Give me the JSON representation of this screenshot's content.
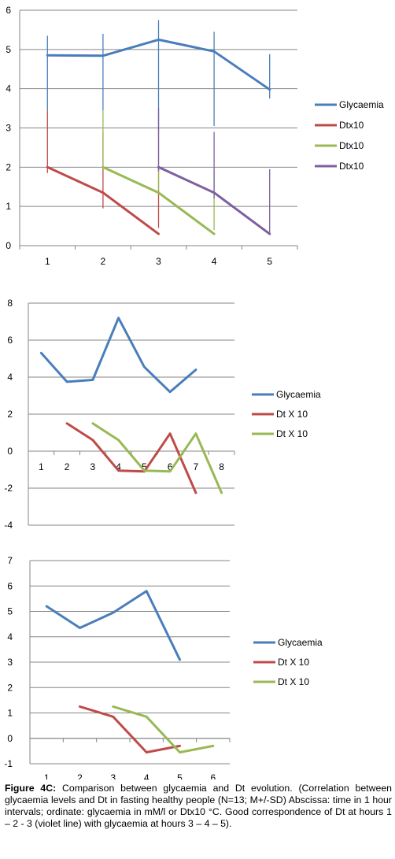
{
  "chart_data": [
    {
      "type": "line",
      "categories": [
        "1",
        "2",
        "3",
        "4",
        "5"
      ],
      "ylim": [
        0,
        6
      ],
      "yticks": [
        0,
        1,
        2,
        3,
        4,
        5,
        6
      ],
      "grid": true,
      "legend": "right",
      "series": [
        {
          "name": "Glycaemia",
          "color": "#4a7ebb",
          "points": [
            [
              1,
              4.85
            ],
            [
              2,
              4.84
            ],
            [
              3,
              5.25
            ],
            [
              4,
              4.95
            ],
            [
              5,
              3.98
            ]
          ],
          "errors": [
            [
              3.45,
              5.35
            ],
            [
              3.45,
              5.4
            ],
            [
              2.9,
              5.75
            ],
            [
              3.05,
              5.45
            ],
            [
              3.75,
              4.88
            ]
          ]
        },
        {
          "name": "Dtx10",
          "color": "#be4b48",
          "points": [
            [
              1,
              2.0
            ],
            [
              2,
              1.35
            ],
            [
              3,
              0.3
            ]
          ],
          "errors": [
            [
              1.85,
              3.45
            ],
            [
              0.95,
              2.9
            ],
            [
              0.45,
              1.98
            ]
          ]
        },
        {
          "name": "Dtx10",
          "color": "#98b954",
          "points": [
            [
              2,
              2.0
            ],
            [
              3,
              1.35
            ],
            [
              4,
              0.3
            ]
          ],
          "errors": [
            [
              1.95,
              3.45
            ],
            [
              1.4,
              2.9
            ],
            [
              0.4,
              1.95
            ]
          ]
        },
        {
          "name": "Dtx10",
          "color": "#7d60a0",
          "points": [
            [
              3,
              2.0
            ],
            [
              4,
              1.35
            ],
            [
              5,
              0.3
            ]
          ],
          "errors": [
            [
              1.9,
              3.5
            ],
            [
              1.2,
              2.9
            ],
            [
              0.3,
              1.95
            ]
          ]
        }
      ]
    },
    {
      "type": "line",
      "categories": [
        "1",
        "2",
        "3",
        "4",
        "5",
        "6",
        "7",
        "8"
      ],
      "ylim": [
        -4,
        8
      ],
      "yticks": [
        -4,
        -2,
        0,
        2,
        4,
        6,
        8
      ],
      "grid": true,
      "legend": "right",
      "series": [
        {
          "name": "Glycaemia",
          "color": "#4a7ebb",
          "points": [
            [
              1,
              5.3
            ],
            [
              2,
              3.75
            ],
            [
              3,
              3.85
            ],
            [
              4,
              7.2
            ],
            [
              5,
              4.55
            ],
            [
              6,
              3.2
            ],
            [
              7,
              4.4
            ]
          ]
        },
        {
          "name": "Dt X 10",
          "color": "#be4b48",
          "points": [
            [
              2,
              1.5
            ],
            [
              3,
              0.6
            ],
            [
              4,
              -1.05
            ],
            [
              5,
              -1.1
            ],
            [
              6,
              0.95
            ],
            [
              7,
              -2.25
            ]
          ]
        },
        {
          "name": "Dt X 10",
          "color": "#98b954",
          "points": [
            [
              3,
              1.5
            ],
            [
              4,
              0.6
            ],
            [
              5,
              -1.05
            ],
            [
              6,
              -1.1
            ],
            [
              7,
              0.95
            ],
            [
              8,
              -2.25
            ]
          ]
        }
      ]
    },
    {
      "type": "line",
      "categories": [
        "1",
        "2",
        "3",
        "4",
        "5",
        "6"
      ],
      "ylim": [
        -1,
        7
      ],
      "yticks": [
        -1,
        0,
        1,
        2,
        3,
        4,
        5,
        6,
        7
      ],
      "grid": true,
      "legend": "right",
      "series": [
        {
          "name": "Glycaemia",
          "color": "#4a7ebb",
          "points": [
            [
              1,
              5.2
            ],
            [
              2,
              4.35
            ],
            [
              3,
              4.95
            ],
            [
              4,
              5.8
            ],
            [
              5,
              3.1
            ]
          ]
        },
        {
          "name": "Dt X 10",
          "color": "#be4b48",
          "points": [
            [
              2,
              1.25
            ],
            [
              3,
              0.85
            ],
            [
              4,
              -0.55
            ],
            [
              5,
              -0.3
            ]
          ]
        },
        {
          "name": "Dt X 10",
          "color": "#98b954",
          "points": [
            [
              3,
              1.25
            ],
            [
              4,
              0.85
            ],
            [
              5,
              -0.55
            ],
            [
              6,
              -0.3
            ]
          ]
        }
      ]
    }
  ],
  "caption": {
    "label": "Figure 4C:",
    "text": " Comparison between glycaemia and Dt evolution. (Correlation between glycaemia levels and Dt in fasting healthy people (N=13; M+/-SD) Abscissa: time in 1 hour intervals; ordinate: glycaemia in mM/l or Dtx10 °C. Good correspondence of Dt at hours 1 – 2 - 3 (violet line) with glycaemia at hours 3 – 4 – 5)."
  }
}
